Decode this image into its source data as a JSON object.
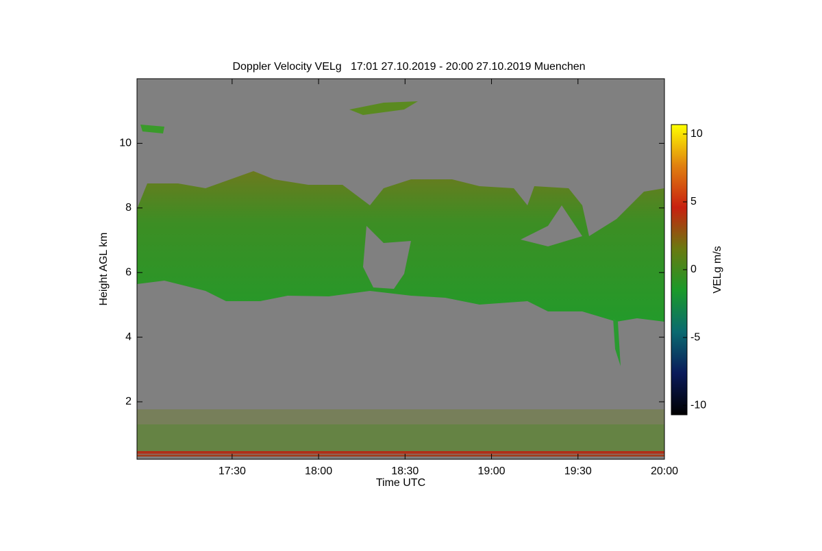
{
  "chart_data": {
    "type": "heatmap",
    "title": "Doppler Velocity VELg   17:01 27.10.2019 - 20:00 27.10.2019 Muenchen",
    "x_label": "Time UTC",
    "y_label": "Height AGL km",
    "xlim": [
      "16:57",
      "20:00"
    ],
    "xticks": [
      "17:30",
      "18:00",
      "18:30",
      "19:00",
      "19:30",
      "20:00"
    ],
    "ylim": [
      0.22,
      12
    ],
    "yticks": [
      2,
      4,
      6,
      8,
      10
    ],
    "colorbar": {
      "label": "VELg m/s",
      "lim": [
        -10.7,
        10.7
      ],
      "ticks": [
        -10,
        -5,
        0,
        5,
        10
      ],
      "colors": [
        "#000000",
        "#0a1a5a",
        "#0a6a70",
        "#1a9a2a",
        "#6a7a10",
        "#c82010",
        "#e08010",
        "#ffff00"
      ]
    }
  }
}
